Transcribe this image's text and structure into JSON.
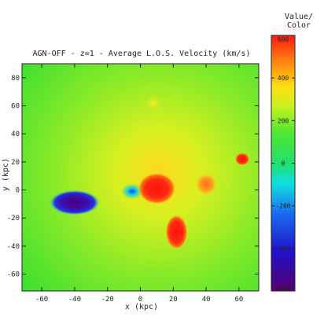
{
  "chart_data": {
    "type": "heatmap",
    "title": "AGN-OFF - z=1 - Average L.O.S. Velocity (km/s)",
    "xlabel": "x (kpc)",
    "ylabel": "y (kpc)",
    "xlim": [
      -72,
      72
    ],
    "ylim": [
      -72,
      90
    ],
    "x_ticks": [
      -60,
      -40,
      -20,
      0,
      20,
      40,
      60
    ],
    "y_ticks": [
      -60,
      -40,
      -20,
      0,
      20,
      40,
      60,
      80
    ],
    "colorbar": {
      "title": "Value/\nColor",
      "min": -600,
      "max": 600,
      "ticks": [
        600,
        400,
        200,
        0,
        -200,
        -400,
        -600
      ],
      "tick_labels": [
        "600",
        "400",
        "200",
        "0",
        "-200",
        "-400",
        "-600"
      ]
    },
    "background_value": 150,
    "features": [
      {
        "name": "blue-clump",
        "x": -40,
        "y": -9,
        "value": -560
      },
      {
        "name": "cyan-clump",
        "x": -5,
        "y": -1,
        "value": -120
      },
      {
        "name": "red-core",
        "x": 10,
        "y": 1,
        "value": 560
      },
      {
        "name": "red-southern-clump",
        "x": 22,
        "y": -30,
        "value": 520
      },
      {
        "name": "orange-eastern-lobe",
        "x": 40,
        "y": 4,
        "value": 420
      },
      {
        "name": "red-eastern-knot",
        "x": 62,
        "y": 22,
        "value": 560
      },
      {
        "name": "yellow-northern-blob",
        "x": 8,
        "y": 62,
        "value": 330
      }
    ]
  }
}
